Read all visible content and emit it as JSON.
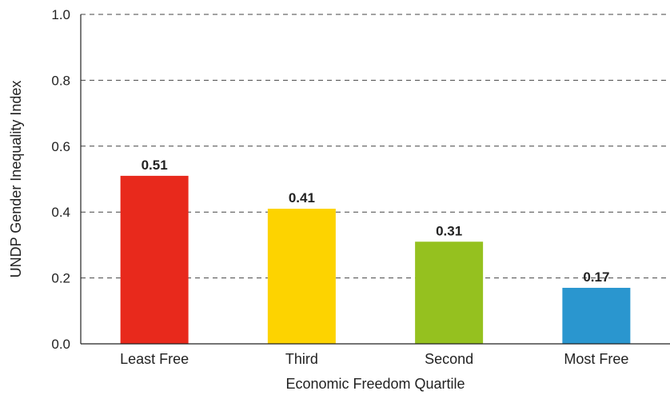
{
  "chart_data": {
    "type": "bar",
    "categories": [
      "Least Free",
      "Third",
      "Second",
      "Most Free"
    ],
    "values": [
      0.51,
      0.41,
      0.31,
      0.17
    ],
    "data_labels": [
      "0.51",
      "0.41",
      "0.31",
      "0.17"
    ],
    "colors": [
      "#e8291c",
      "#fdd300",
      "#95c11f",
      "#2a96cf"
    ],
    "title": "",
    "xlabel": "Economic Freedom Quartile",
    "ylabel": "UNDP Gender Inequality Index",
    "ylim": [
      0,
      1.0
    ],
    "yticks": [
      0.0,
      0.2,
      0.4,
      0.6,
      0.8,
      1.0
    ],
    "ytick_labels": [
      "0.0",
      "0.2",
      "0.4",
      "0.6",
      "0.8",
      "1.0"
    ],
    "grid": true,
    "legend": "none"
  }
}
